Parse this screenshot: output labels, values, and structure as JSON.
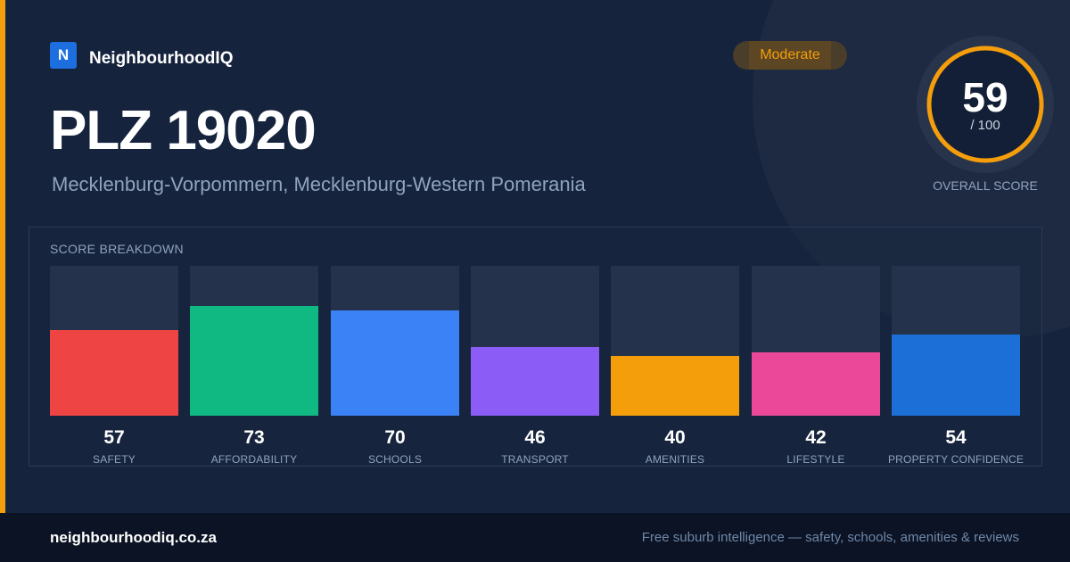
{
  "brand": {
    "logo_letter": "N",
    "name": "NeighbourhoodIQ"
  },
  "header": {
    "title": "PLZ 19020",
    "subtitle": "Mecklenburg-Vorpommern, Mecklenburg-Western Pomerania",
    "badge": "Moderate"
  },
  "overall_score": {
    "value": "59",
    "max_label": "/ 100",
    "caption": "OVERALL SCORE",
    "score": 59,
    "max": 100,
    "color": "#f59e0b"
  },
  "breakdown": {
    "title": "SCORE BREAKDOWN"
  },
  "chart_data": {
    "type": "bar",
    "title": "SCORE BREAKDOWN",
    "categories": [
      "SAFETY",
      "AFFORDABILITY",
      "SCHOOLS",
      "TRANSPORT",
      "AMENITIES",
      "LIFESTYLE",
      "PROPERTY CONFIDENCE"
    ],
    "values": [
      57,
      73,
      70,
      46,
      40,
      42,
      54
    ],
    "colors": [
      "#ef4444",
      "#10b981",
      "#3b82f6",
      "#8b5cf6",
      "#f59e0b",
      "#ec4899",
      "#1d6fd8"
    ],
    "ylim": [
      0,
      100
    ],
    "grid": false
  },
  "footer": {
    "url": "neighbourhoodiq.co.za",
    "tagline": "Free suburb intelligence — safety, schools, amenities & reviews"
  }
}
